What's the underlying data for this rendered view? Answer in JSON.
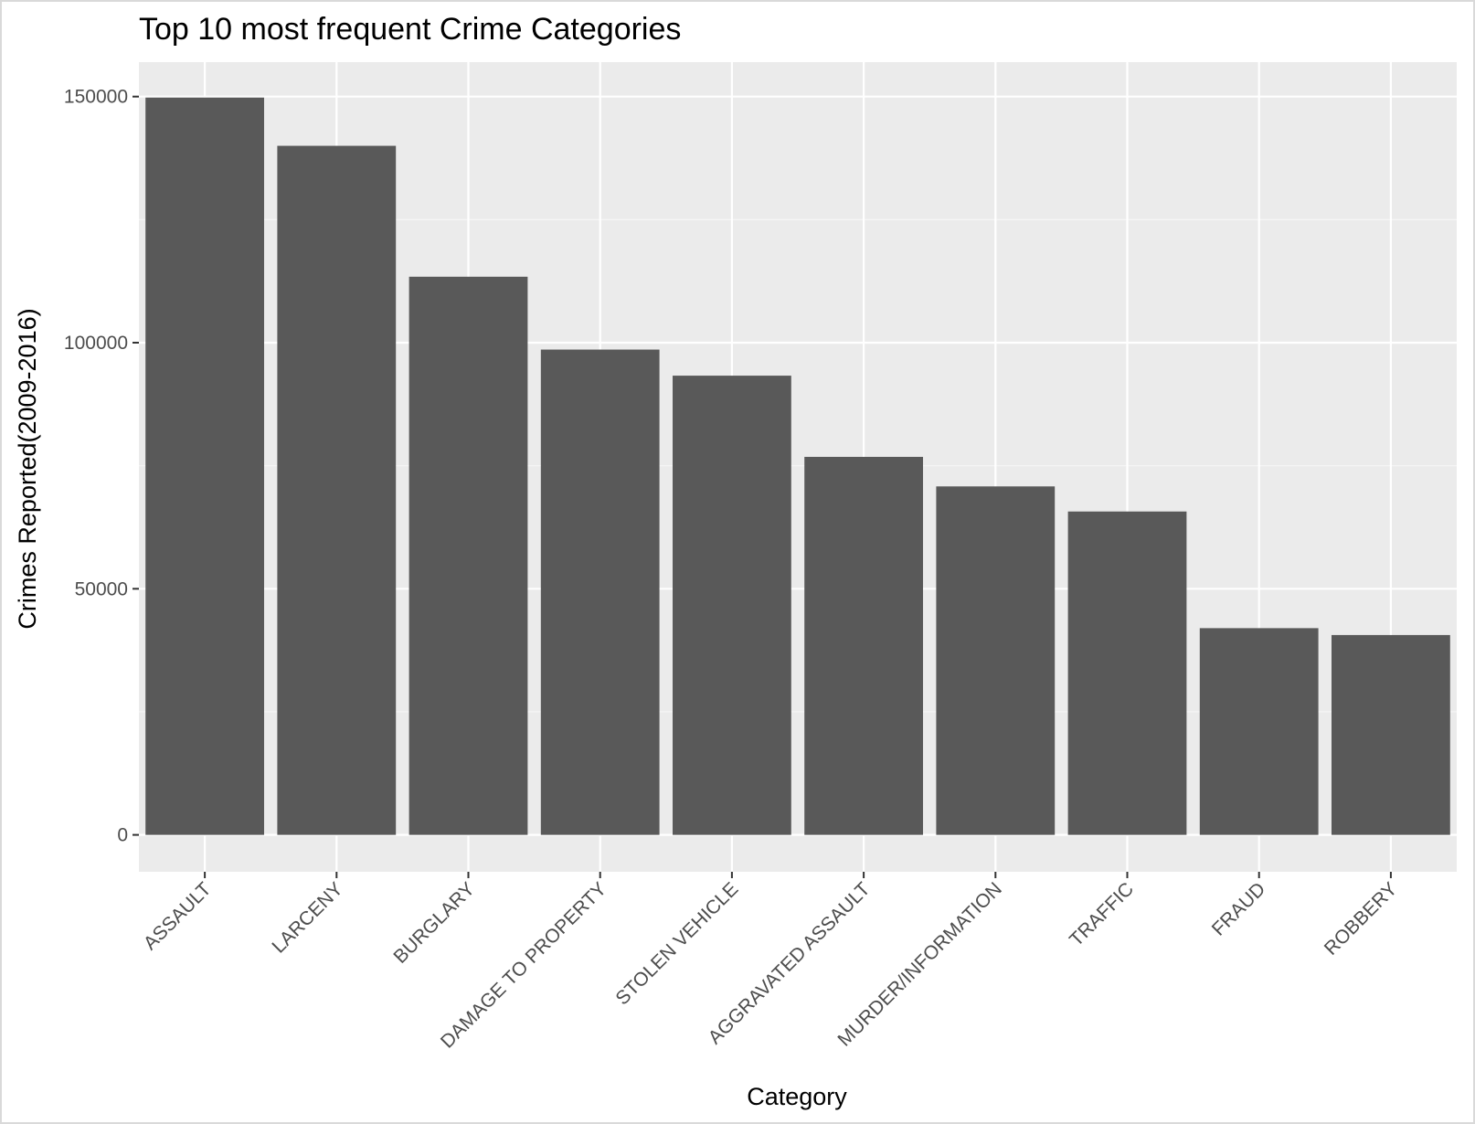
{
  "chart_data": {
    "type": "bar",
    "title": "Top 10 most frequent Crime Categories",
    "xlabel": "Category",
    "ylabel": "Crimes Reported(2009-2016)",
    "categories": [
      "ASSAULT",
      "LARCENY",
      "BURGLARY",
      "DAMAGE TO PROPERTY",
      "STOLEN VEHICLE",
      "AGGRAVATED ASSAULT",
      "MURDER/INFORMATION",
      "TRAFFIC",
      "FRAUD",
      "ROBBERY"
    ],
    "values": [
      149800,
      140000,
      113400,
      98600,
      93300,
      76800,
      70800,
      65700,
      42000,
      40600
    ],
    "yticks": [
      0,
      50000,
      100000,
      150000
    ],
    "ytick_labels": [
      "0",
      "50000",
      "100000",
      "150000"
    ],
    "ylim": [
      -7500,
      157000
    ],
    "grid": true,
    "legend": "none",
    "colors": {
      "bar": "#595959",
      "panel": "#ebebeb",
      "grid_major": "#ffffff",
      "grid_minor": "#f5f5f5",
      "tick_text": "#4d4d4d",
      "tick_mark": "#333333"
    }
  }
}
